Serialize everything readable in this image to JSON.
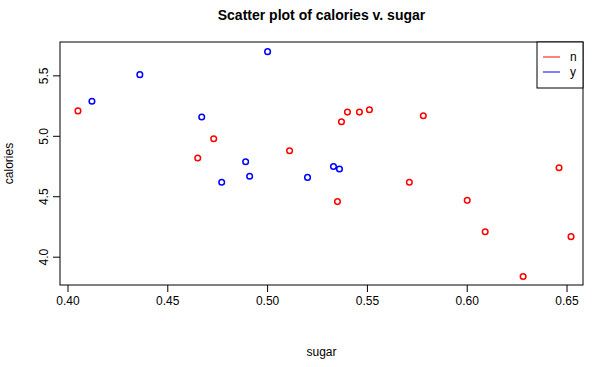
{
  "chart_data": {
    "type": "scatter",
    "title": "Scatter plot of calories v. sugar",
    "x_label": "sugar",
    "y_label": "calories",
    "xlim": [
      0.396,
      0.658
    ],
    "xticks": [
      {
        "value": 0.4,
        "label": "0.40"
      },
      0.45,
      {
        "value": 0.5,
        "label": "0.50"
      },
      0.55,
      {
        "value": 0.6,
        "label": "0.60"
      },
      0.65
    ],
    "ylim": [
      3.77,
      5.78
    ],
    "yticks": [
      {
        "value": 4,
        "label": "4.0"
      },
      4.5,
      {
        "value": 5,
        "label": "5.0"
      },
      5.5
    ],
    "legend": "topright",
    "grid": false,
    "marker": "circle",
    "series": [
      {
        "name": "n",
        "color": "#ff0000",
        "x": [
          0.405,
          0.465,
          0.473,
          0.511,
          0.535,
          0.537,
          0.54,
          0.546,
          0.551,
          0.571,
          0.578,
          0.6,
          0.609,
          0.628,
          0.646,
          0.652
        ],
        "values": [
          5.21,
          4.82,
          4.98,
          4.88,
          4.46,
          5.12,
          5.2,
          5.2,
          5.22,
          4.62,
          5.17,
          4.47,
          4.21,
          3.84,
          4.74,
          4.17
        ]
      },
      {
        "name": "y",
        "color": "#0000ff",
        "x": [
          0.412,
          0.436,
          0.467,
          0.477,
          0.489,
          0.491,
          0.5,
          0.52,
          0.533,
          0.536
        ],
        "values": [
          5.29,
          5.51,
          5.16,
          4.62,
          4.79,
          4.67,
          5.7,
          4.66,
          4.75,
          4.73
        ]
      }
    ]
  }
}
